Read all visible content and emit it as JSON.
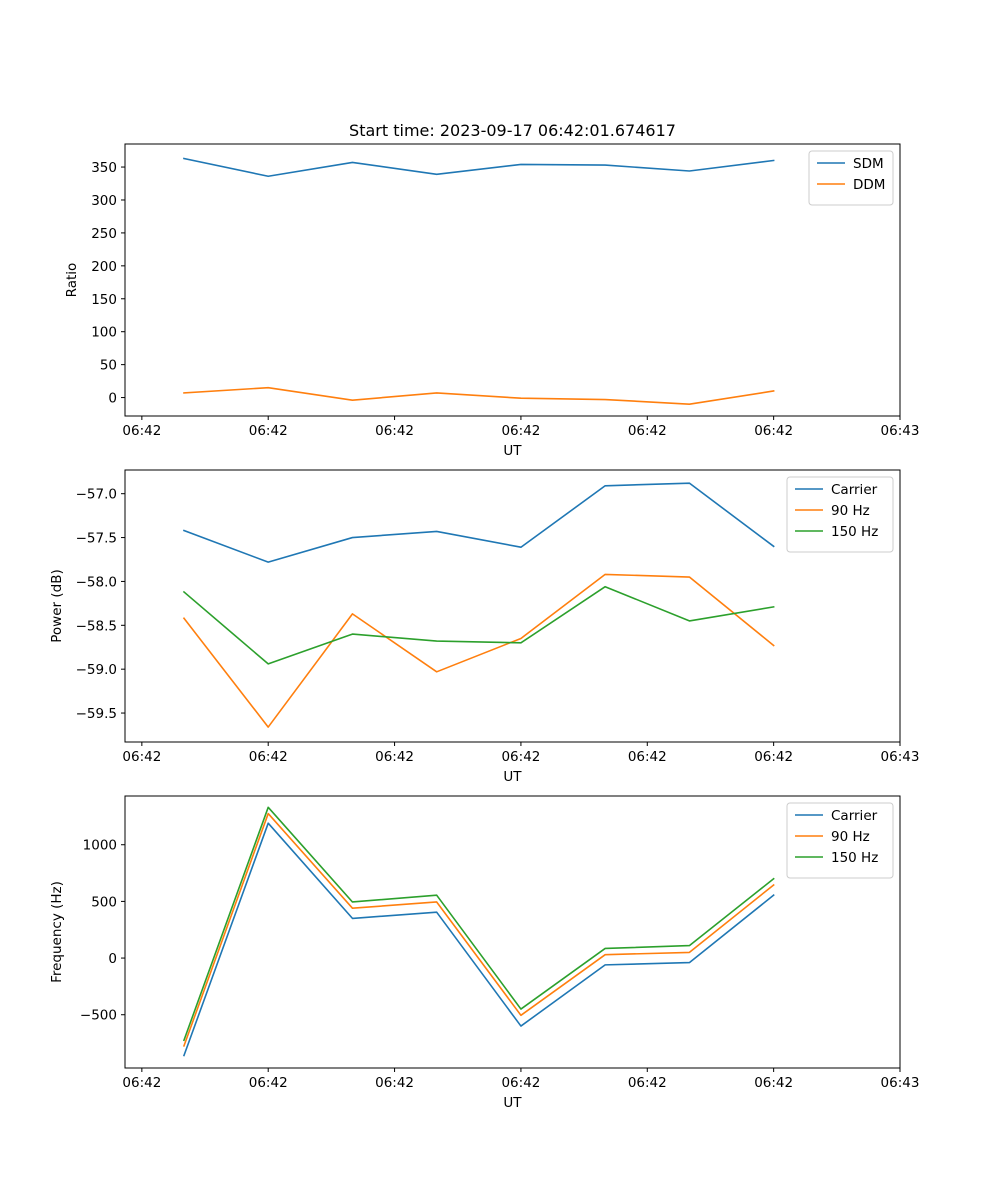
{
  "colors": {
    "blue": "#1f77b4",
    "orange": "#ff7f0e",
    "green": "#2ca02c",
    "axis": "#000000",
    "legend_border": "#cccccc"
  },
  "chart_data": [
    {
      "type": "line",
      "title": "Start time: 2023-09-17 06:42:01.674617",
      "xlabel": "UT",
      "ylabel": "Ratio",
      "x": [
        1,
        2,
        3,
        4,
        5,
        6,
        7,
        8
      ],
      "xlim": [
        0.3,
        9.5
      ],
      "x_ticks": [
        0.5,
        2,
        3.5,
        5,
        6.5,
        8,
        9.5
      ],
      "x_tick_labels": [
        "06:42",
        "06:42",
        "06:42",
        "06:42",
        "06:42",
        "06:42",
        "06:43"
      ],
      "ylim": [
        -28,
        385
      ],
      "y_ticks": [
        0,
        50,
        100,
        150,
        200,
        250,
        300,
        350
      ],
      "y_tick_labels": [
        "0",
        "50",
        "100",
        "150",
        "200",
        "250",
        "300",
        "350"
      ],
      "legend_position": "top-right",
      "series": [
        {
          "name": "SDM",
          "color": "#1f77b4",
          "values": [
            363,
            336,
            357,
            339,
            354,
            353,
            344,
            360
          ]
        },
        {
          "name": "DDM",
          "color": "#ff7f0e",
          "values": [
            7,
            15,
            -4,
            7,
            -1,
            -3,
            -10,
            10
          ]
        }
      ]
    },
    {
      "type": "line",
      "title": "",
      "xlabel": "UT",
      "ylabel": "Power (dB)",
      "x": [
        1,
        2,
        3,
        4,
        5,
        6,
        7,
        8
      ],
      "xlim": [
        0.3,
        9.5
      ],
      "x_ticks": [
        0.5,
        2,
        3.5,
        5,
        6.5,
        8,
        9.5
      ],
      "x_tick_labels": [
        "06:42",
        "06:42",
        "06:42",
        "06:42",
        "06:42",
        "06:42",
        "06:43"
      ],
      "ylim": [
        -59.83,
        -56.73
      ],
      "y_ticks": [
        -59.5,
        -59.0,
        -58.5,
        -58.0,
        -57.5,
        -57.0
      ],
      "y_tick_labels": [
        "−59.5",
        "−59.0",
        "−58.5",
        "−58.0",
        "−57.5",
        "−57.0"
      ],
      "legend_position": "top-right",
      "series": [
        {
          "name": "Carrier",
          "color": "#1f77b4",
          "values": [
            -57.42,
            -57.78,
            -57.5,
            -57.43,
            -57.61,
            -56.91,
            -56.88,
            -57.6
          ]
        },
        {
          "name": "90 Hz",
          "color": "#ff7f0e",
          "values": [
            -58.42,
            -59.66,
            -58.37,
            -59.03,
            -58.65,
            -57.92,
            -57.95,
            -58.73
          ]
        },
        {
          "name": "150 Hz",
          "color": "#2ca02c",
          "values": [
            -58.12,
            -58.94,
            -58.6,
            -58.68,
            -58.7,
            -58.06,
            -58.45,
            -58.29
          ]
        }
      ]
    },
    {
      "type": "line",
      "title": "",
      "xlabel": "UT",
      "ylabel": "Frequency (Hz)",
      "x": [
        1,
        2,
        3,
        4,
        5,
        6,
        7,
        8
      ],
      "xlim": [
        0.3,
        9.5
      ],
      "x_ticks": [
        0.5,
        2,
        3.5,
        5,
        6.5,
        8,
        9.5
      ],
      "x_tick_labels": [
        "06:42",
        "06:42",
        "06:42",
        "06:42",
        "06:42",
        "06:42",
        "06:43"
      ],
      "ylim": [
        -970,
        1430
      ],
      "y_ticks": [
        -500,
        0,
        500,
        1000
      ],
      "y_tick_labels": [
        "−500",
        "0",
        "500",
        "1000"
      ],
      "legend_position": "top-right",
      "series": [
        {
          "name": "Carrier",
          "color": "#1f77b4",
          "values": [
            -860,
            1190,
            350,
            405,
            -600,
            -60,
            -40,
            555
          ]
        },
        {
          "name": "90 Hz",
          "color": "#ff7f0e",
          "values": [
            -775,
            1275,
            440,
            495,
            -505,
            30,
            50,
            645
          ]
        },
        {
          "name": "150 Hz",
          "color": "#2ca02c",
          "values": [
            -725,
            1330,
            495,
            555,
            -450,
            85,
            110,
            700
          ]
        }
      ]
    }
  ]
}
